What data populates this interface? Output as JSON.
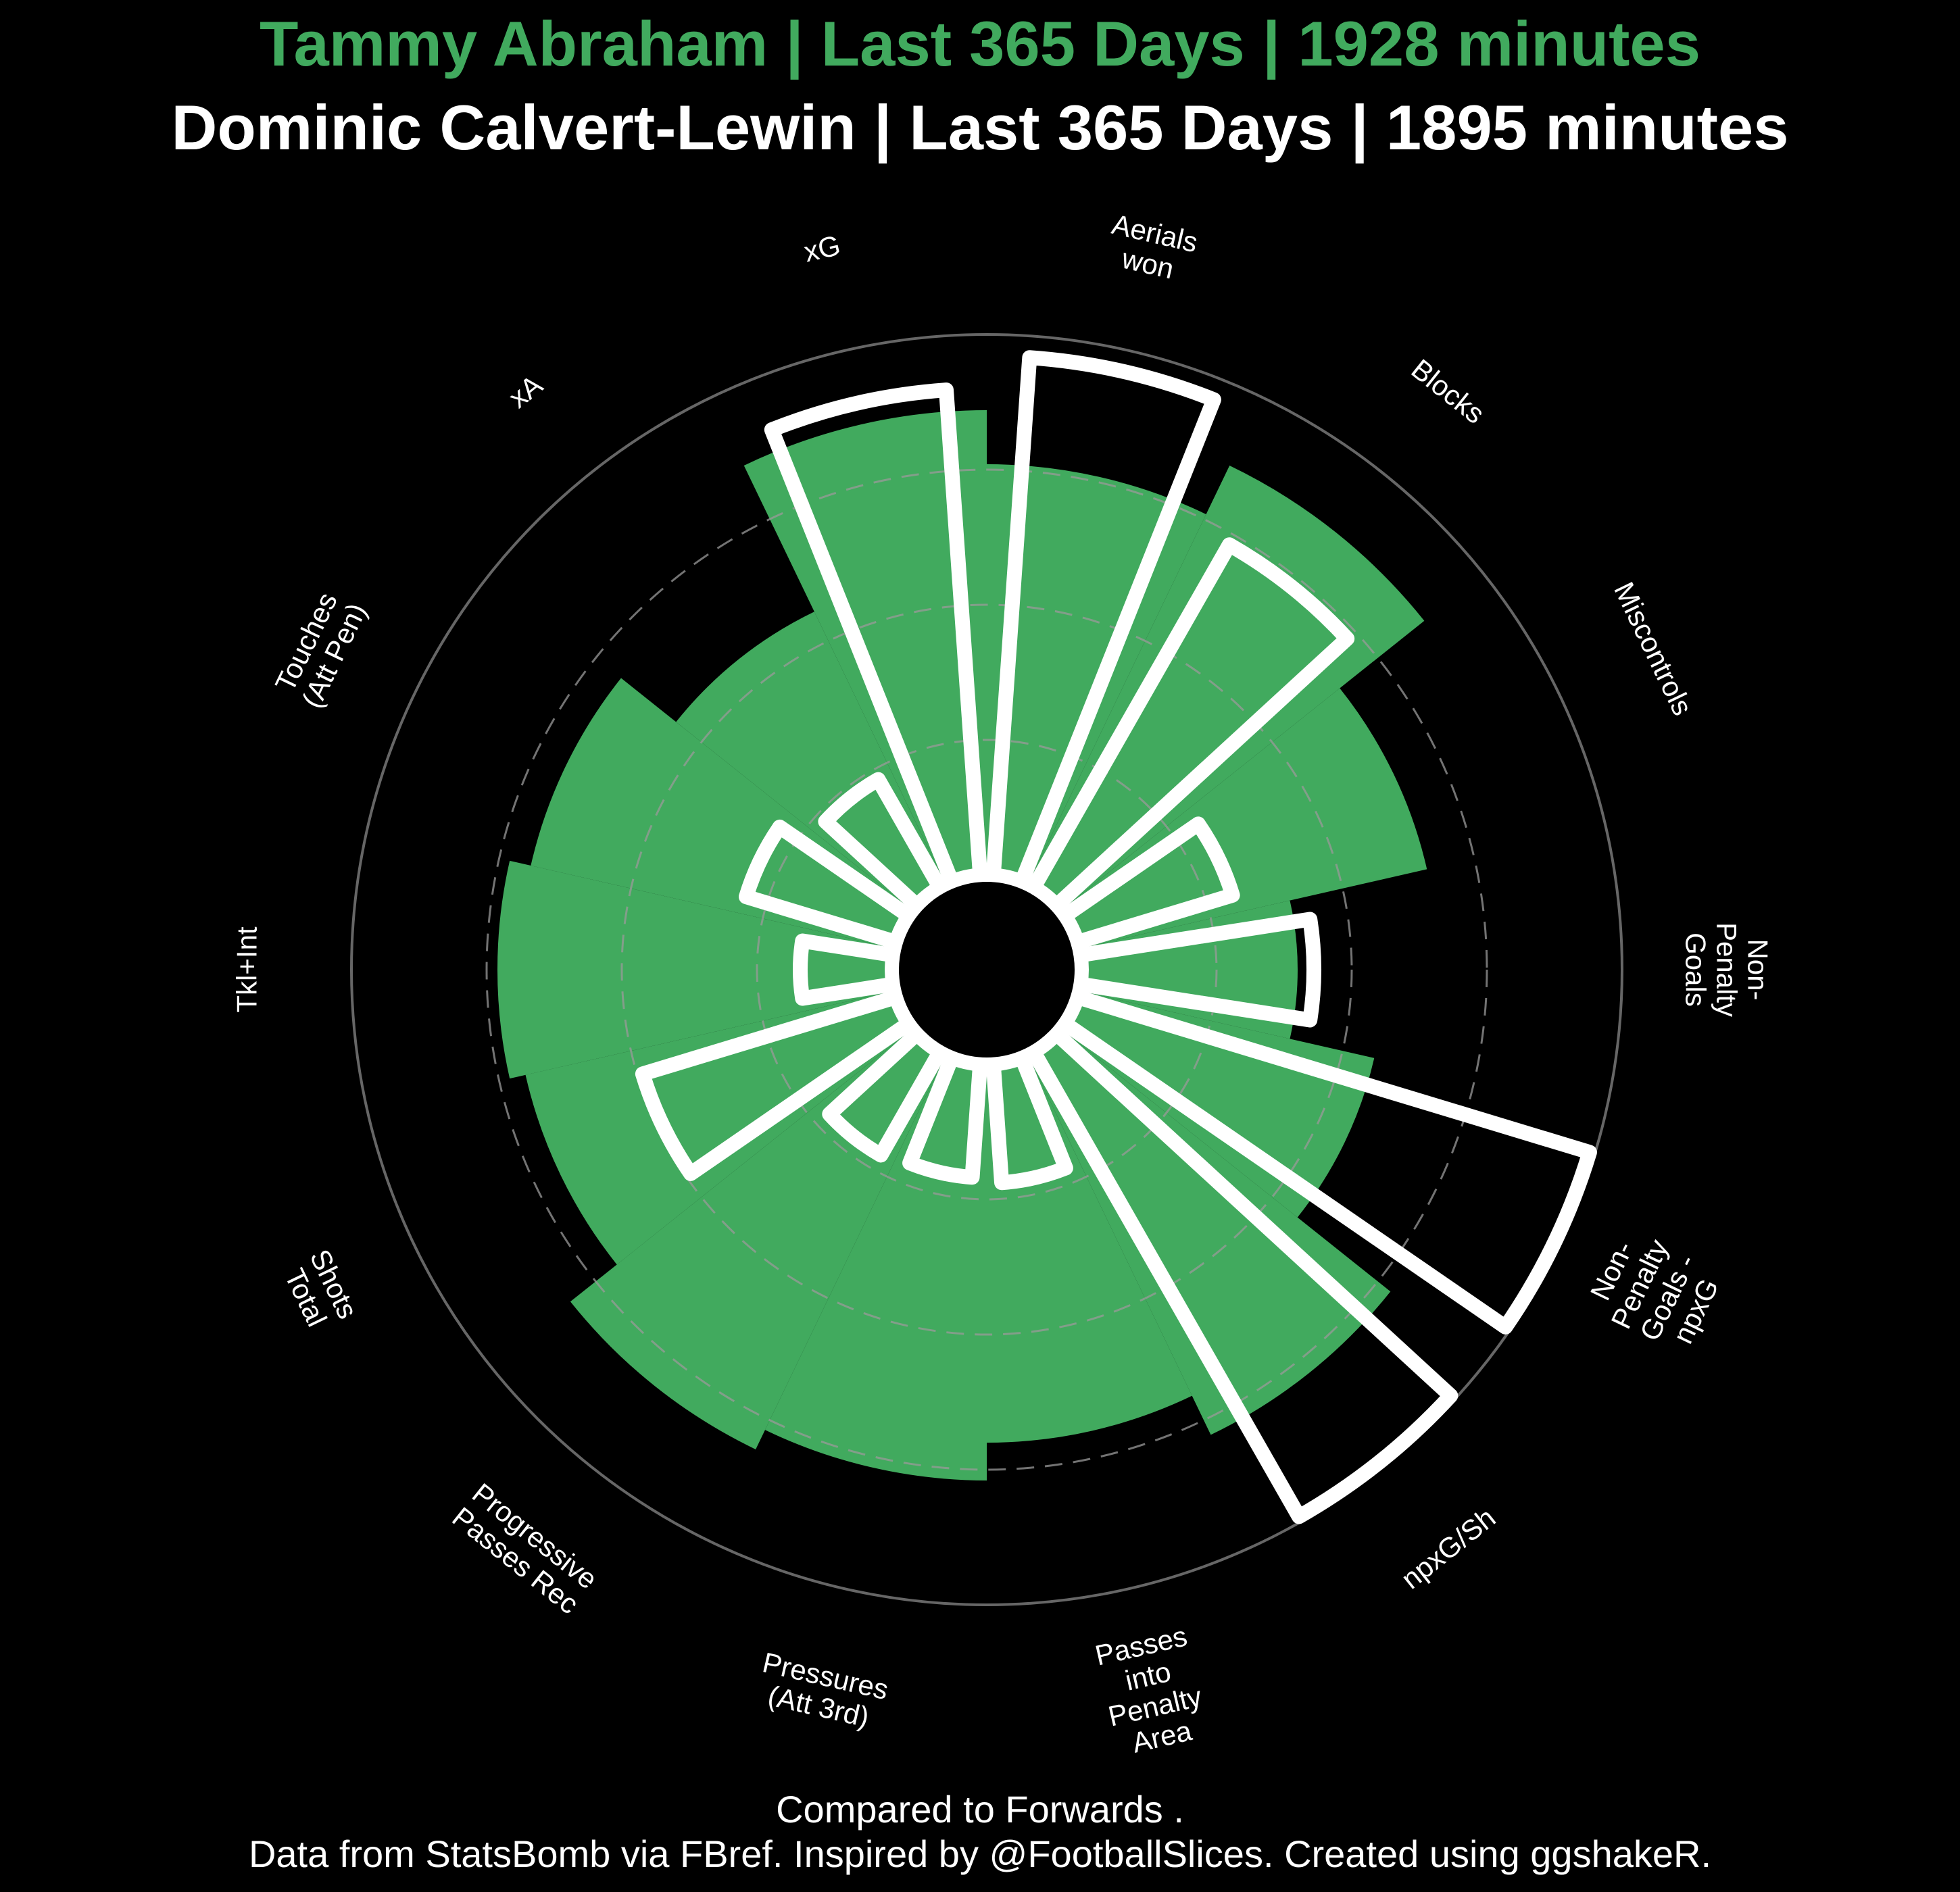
{
  "title_primary": "Tammy Abraham | Last 365 Days | 1928 minutes",
  "title_secondary": "Dominic Calvert-Lewin | Last 365 Days | 1895 minutes",
  "caption_line1": "Compared to Forwards .",
  "caption_line2": "Data from StatsBomb via FBref. Inspired by @FootballSlices. Created using ggshakeR.",
  "colors": {
    "primary_fill": "#41AA5E",
    "outline": "#ffffff",
    "background": "#000000",
    "grid_solid": "#666666",
    "grid_dashed": "#999999"
  },
  "chart_data": {
    "type": "polar-bar",
    "categories": [
      "Aerials won",
      "Blocks",
      "Miscontrols",
      "Non-Penalty Goals",
      "Non-Penalty Goals - npxG",
      "npxG/Sh",
      "Passes into Penalty Area",
      "Pressures (Att 3rd)",
      "Progressive Passes Rec",
      "Shots Total",
      "Tkl+Int",
      "Touches (Att Pen)",
      "xA",
      "xG"
    ],
    "category_labels": [
      [
        "Aerials",
        "won"
      ],
      [
        "Blocks"
      ],
      [
        "Miscontrols"
      ],
      [
        "Non-",
        "Penalty",
        "Goals"
      ],
      [
        "Non-",
        "Penalty",
        "Goals -",
        "npxG"
      ],
      [
        "npxG/Sh"
      ],
      [
        "Passes",
        "into",
        "Penalty",
        "Area"
      ],
      [
        "Pressures",
        "(Att 3rd)"
      ],
      [
        "Progressive",
        "Passes Rec"
      ],
      [
        "Shots",
        "Total"
      ],
      [
        "Tkl+Int"
      ],
      [
        "Touches",
        "(Att Pen)"
      ],
      [
        "xA"
      ],
      [
        "xG"
      ]
    ],
    "series": [
      {
        "name": "Tammy Abraham",
        "style": "filled",
        "values": [
          76,
          86,
          66,
          40,
          56,
          78,
          70,
          77,
          81,
          70,
          73,
          69,
          56,
          86
        ]
      },
      {
        "name": "Dominic Calvert-Lewin",
        "style": "outline",
        "values": [
          96,
          73,
          30,
          43,
          99,
          99,
          22,
          21,
          22,
          49,
          17,
          29,
          23,
          90
        ]
      }
    ],
    "ylim": [
      0,
      100
    ],
    "grid": {
      "dashed_rings": [
        25,
        50,
        75
      ],
      "solid_ring": 100
    }
  }
}
